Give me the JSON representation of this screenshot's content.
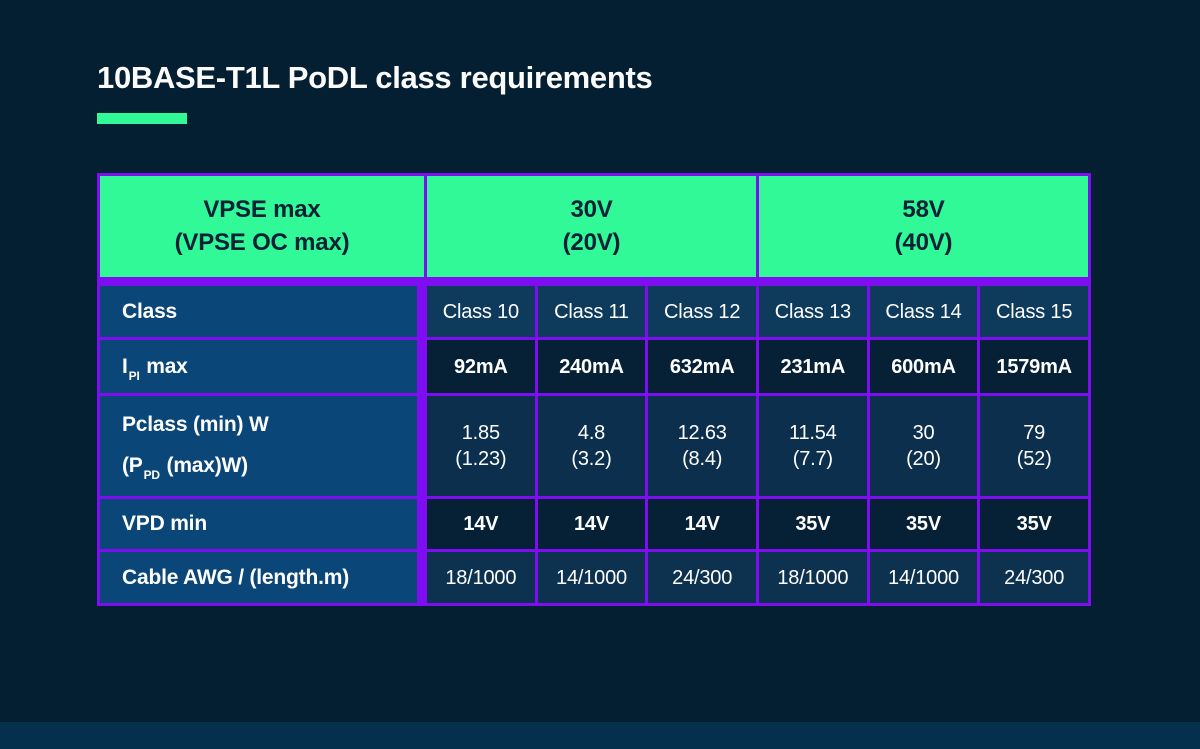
{
  "page": {
    "background": "#031F31",
    "footer_band_color": "#04304E",
    "accent_color": "#31F998",
    "border_color": "#7E0DF2"
  },
  "header": {
    "title": "10BASE-T1L PoDL class requirements"
  },
  "table": {
    "column_headers": {
      "vpse": {
        "line1": "VPSE max",
        "line2": "(VPSE OC max)"
      },
      "group_30v": {
        "line1": "30V",
        "line2": "(20V)"
      },
      "group_58v": {
        "line1": "58V",
        "line2": "(40V)"
      }
    },
    "rows": {
      "class": {
        "label": "Class",
        "values": [
          "Class 10",
          "Class 11",
          "Class 12",
          "Class 13",
          "Class 14",
          "Class 15"
        ]
      },
      "ipi": {
        "label_pre": "I",
        "label_sub": "PI",
        "label_post": " max",
        "values": [
          "92mA",
          "240mA",
          "632mA",
          "231mA",
          "600mA",
          "1579mA"
        ]
      },
      "pclass": {
        "label_line1": "Pclass (min) W",
        "label2_pre": "(P",
        "label2_sub": "PD",
        "label2_post": " (max)W)",
        "values": [
          {
            "main": "1.85",
            "paren": "(1.23)"
          },
          {
            "main": "4.8",
            "paren": "(3.2)"
          },
          {
            "main": "12.63",
            "paren": "(8.4)"
          },
          {
            "main": "11.54",
            "paren": "(7.7)"
          },
          {
            "main": "30",
            "paren": "(20)"
          },
          {
            "main": "79",
            "paren": "(52)"
          }
        ]
      },
      "vpd": {
        "label": "VPD min",
        "values": [
          "14V",
          "14V",
          "14V",
          "35V",
          "35V",
          "35V"
        ]
      },
      "cable": {
        "label": "Cable AWG / (length.m)",
        "values": [
          "18/1000",
          "14/1000",
          "24/300",
          "18/1000",
          "14/1000",
          "24/300"
        ]
      }
    }
  },
  "chart_data": {
    "type": "table",
    "title": "10BASE-T1L PoDL class requirements",
    "row_header": "VPSE max (VPSE OC max)",
    "column_groups": [
      {
        "label": "30V (20V)",
        "columns": [
          "Class 10",
          "Class 11",
          "Class 12"
        ]
      },
      {
        "label": "58V (40V)",
        "columns": [
          "Class 13",
          "Class 14",
          "Class 15"
        ]
      }
    ],
    "rows": [
      {
        "label": "Class",
        "values": [
          "Class 10",
          "Class 11",
          "Class 12",
          "Class 13",
          "Class 14",
          "Class 15"
        ]
      },
      {
        "label": "I_PI max",
        "values": [
          "92mA",
          "240mA",
          "632mA",
          "231mA",
          "600mA",
          "1579mA"
        ]
      },
      {
        "label": "Pclass (min) W (P_PD (max)W)",
        "values": [
          "1.85 (1.23)",
          "4.8 (3.2)",
          "12.63 (8.4)",
          "11.54 (7.7)",
          "30 (20)",
          "79 (52)"
        ]
      },
      {
        "label": "VPD min",
        "values": [
          "14V",
          "14V",
          "14V",
          "35V",
          "35V",
          "35V"
        ]
      },
      {
        "label": "Cable AWG / (length.m)",
        "values": [
          "18/1000",
          "14/1000",
          "24/300",
          "18/1000",
          "14/1000",
          "24/300"
        ]
      }
    ]
  }
}
